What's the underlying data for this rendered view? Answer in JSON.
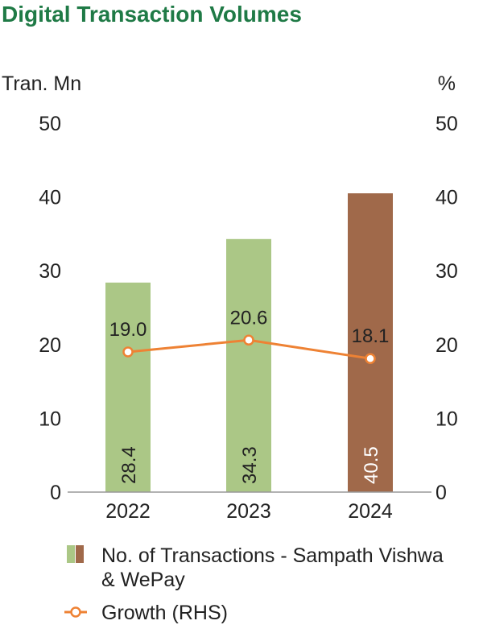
{
  "chart_data": {
    "type": "bar",
    "title": "Digital Transaction Volumes",
    "ylabel": "Tran. Mn",
    "y2label": "%",
    "categories": [
      "2022",
      "2023",
      "2024"
    ],
    "ylim": [
      0,
      50
    ],
    "y2lim": [
      0,
      50
    ],
    "yticks": [
      0,
      10,
      20,
      30,
      40,
      50
    ],
    "y2ticks": [
      0,
      10,
      20,
      30,
      40,
      50
    ],
    "bars": {
      "name": "No. of Transactions - Sampath Vishwa & WePay",
      "values": [
        28.4,
        34.3,
        40.5
      ],
      "labels": [
        "28.4",
        "34.3",
        "40.5"
      ],
      "colors": [
        "#abc786",
        "#abc786",
        "#a0694a"
      ]
    },
    "line": {
      "name": "Growth (RHS)",
      "values": [
        19.0,
        20.6,
        18.1
      ],
      "labels": [
        "19.0",
        "20.6",
        "18.1"
      ],
      "color": "#ee8234"
    },
    "legend": [
      {
        "label": "No. of Transactions - Sampath Vishwa",
        "label2": "& WePay",
        "colors": [
          "#abc786",
          "#a0694a"
        ]
      },
      {
        "label": "Growth (RHS)",
        "color": "#ee8234"
      }
    ],
    "title_color": "#1f7a46",
    "grid": false,
    "legend_position": "bottom"
  }
}
